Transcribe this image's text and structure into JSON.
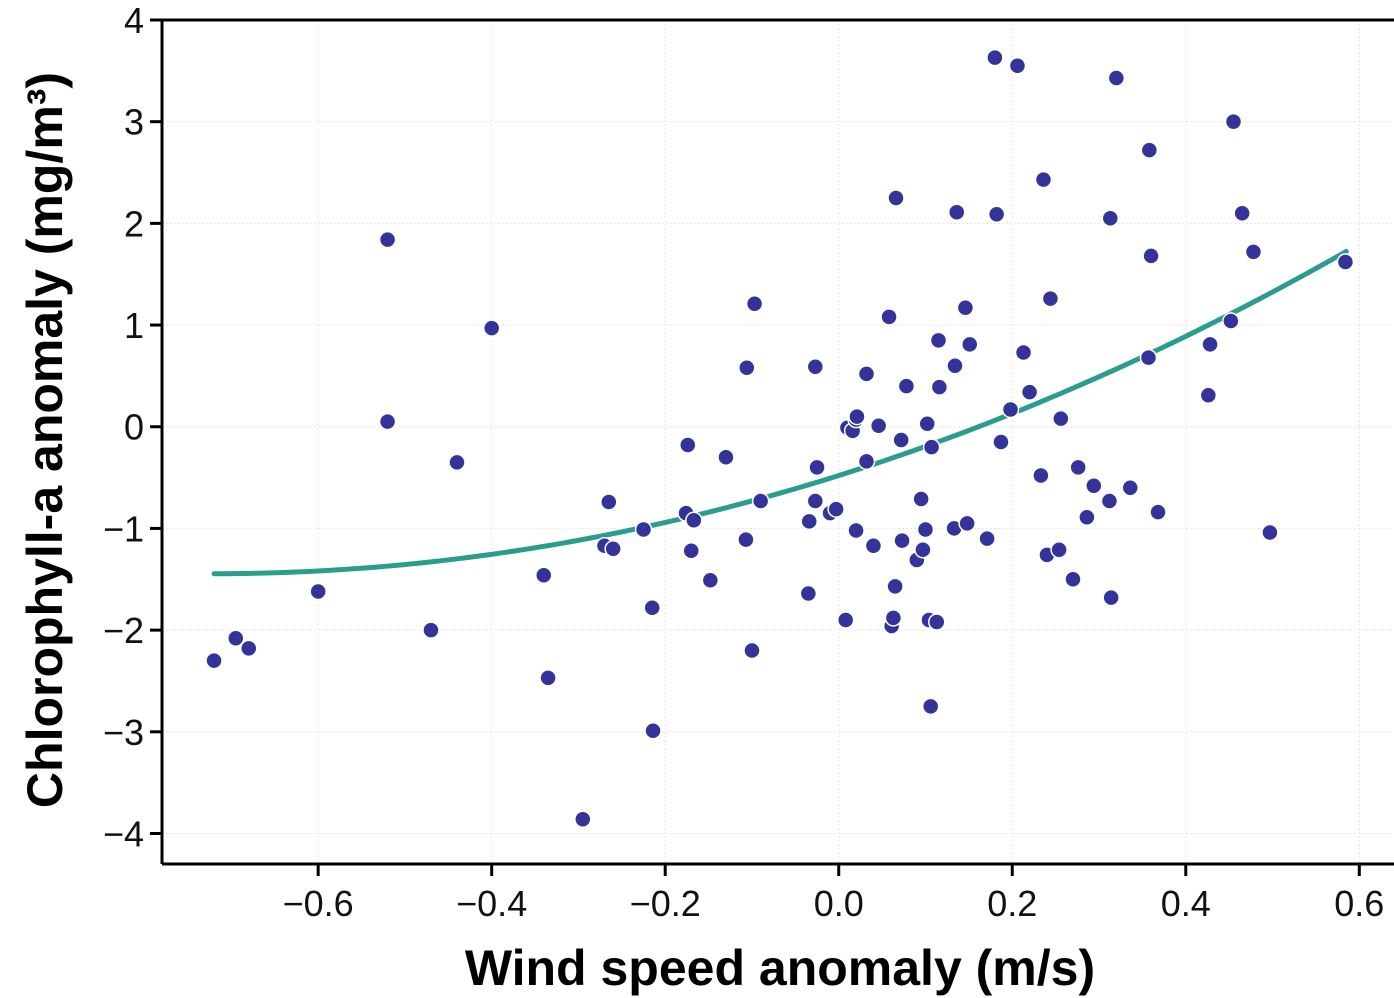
{
  "chart_data": {
    "type": "scatter",
    "xlabel": "Wind speed anomaly (m/s)",
    "ylabel": "Chlorophyll-a anomaly (mg/m³)",
    "xlim": [
      -0.78,
      0.64
    ],
    "ylim": [
      -4.3,
      4
    ],
    "xticks": [
      -0.6,
      -0.4,
      -0.2,
      0.0,
      0.2,
      0.4,
      0.6
    ],
    "xtick_labels": [
      "−0.6",
      "−0.4",
      "−0.2",
      "0.0",
      "0.2",
      "0.4",
      "0.6"
    ],
    "yticks": [
      -4,
      -3,
      -2,
      -1,
      0,
      1,
      2,
      3,
      4
    ],
    "ytick_labels": [
      "−4",
      "−3",
      "−2",
      "−1",
      "0",
      "1",
      "2",
      "3",
      "4"
    ],
    "grid": true,
    "colors": {
      "points": "#33339a",
      "fit": "#2a9d8f",
      "grid": "#e6e6e6",
      "axis": "#000000"
    },
    "points": [
      {
        "x": -0.72,
        "y": -2.3
      },
      {
        "x": -0.695,
        "y": -2.08
      },
      {
        "x": -0.68,
        "y": -2.18
      },
      {
        "x": -0.6,
        "y": -1.62
      },
      {
        "x": -0.52,
        "y": 1.84
      },
      {
        "x": -0.52,
        "y": 0.05
      },
      {
        "x": -0.47,
        "y": -2.0
      },
      {
        "x": -0.44,
        "y": -0.35
      },
      {
        "x": -0.4,
        "y": 0.97
      },
      {
        "x": -0.34,
        "y": -1.46
      },
      {
        "x": -0.335,
        "y": -2.47
      },
      {
        "x": -0.295,
        "y": -3.86
      },
      {
        "x": -0.27,
        "y": -1.17
      },
      {
        "x": -0.265,
        "y": -0.74
      },
      {
        "x": -0.26,
        "y": -1.2
      },
      {
        "x": -0.225,
        "y": -1.01
      },
      {
        "x": -0.215,
        "y": -1.78
      },
      {
        "x": -0.214,
        "y": -2.99
      },
      {
        "x": -0.176,
        "y": -0.85
      },
      {
        "x": -0.174,
        "y": -0.18
      },
      {
        "x": -0.17,
        "y": -1.22
      },
      {
        "x": -0.167,
        "y": -0.92
      },
      {
        "x": -0.148,
        "y": -1.51
      },
      {
        "x": -0.13,
        "y": -0.3
      },
      {
        "x": -0.107,
        "y": -1.11
      },
      {
        "x": -0.106,
        "y": 0.58
      },
      {
        "x": -0.1,
        "y": -2.2
      },
      {
        "x": -0.097,
        "y": 1.21
      },
      {
        "x": -0.09,
        "y": -0.73
      },
      {
        "x": -0.035,
        "y": -1.64
      },
      {
        "x": -0.034,
        "y": -0.93
      },
      {
        "x": -0.027,
        "y": 0.59
      },
      {
        "x": -0.027,
        "y": -0.73
      },
      {
        "x": -0.025,
        "y": -0.4
      },
      {
        "x": -0.01,
        "y": -0.85
      },
      {
        "x": -0.003,
        "y": -0.81
      },
      {
        "x": 0.008,
        "y": -1.9
      },
      {
        "x": 0.01,
        "y": -0.01
      },
      {
        "x": 0.016,
        "y": -0.04
      },
      {
        "x": 0.02,
        "y": 0.07
      },
      {
        "x": 0.021,
        "y": 0.1
      },
      {
        "x": 0.02,
        "y": -1.02
      },
      {
        "x": 0.032,
        "y": -0.34
      },
      {
        "x": 0.032,
        "y": 0.52
      },
      {
        "x": 0.04,
        "y": -1.17
      },
      {
        "x": 0.046,
        "y": 0.01
      },
      {
        "x": 0.058,
        "y": 1.08
      },
      {
        "x": 0.061,
        "y": -1.96
      },
      {
        "x": 0.063,
        "y": -1.88
      },
      {
        "x": 0.065,
        "y": -1.57
      },
      {
        "x": 0.066,
        "y": 2.25
      },
      {
        "x": 0.072,
        "y": -0.13
      },
      {
        "x": 0.073,
        "y": -1.12
      },
      {
        "x": 0.078,
        "y": 0.4
      },
      {
        "x": 0.09,
        "y": -1.31
      },
      {
        "x": 0.095,
        "y": -0.71
      },
      {
        "x": 0.097,
        "y": -1.21
      },
      {
        "x": 0.1,
        "y": -1.01
      },
      {
        "x": 0.102,
        "y": 0.03
      },
      {
        "x": 0.104,
        "y": -1.9
      },
      {
        "x": 0.106,
        "y": -2.75
      },
      {
        "x": 0.107,
        "y": -0.2
      },
      {
        "x": 0.113,
        "y": -1.92
      },
      {
        "x": 0.115,
        "y": 0.85
      },
      {
        "x": 0.116,
        "y": 0.39
      },
      {
        "x": 0.133,
        "y": -1.0
      },
      {
        "x": 0.134,
        "y": 0.6
      },
      {
        "x": 0.136,
        "y": 2.11
      },
      {
        "x": 0.146,
        "y": 1.17
      },
      {
        "x": 0.148,
        "y": -0.95
      },
      {
        "x": 0.151,
        "y": 0.81
      },
      {
        "x": 0.171,
        "y": -1.1
      },
      {
        "x": 0.18,
        "y": 3.63
      },
      {
        "x": 0.182,
        "y": 2.09
      },
      {
        "x": 0.187,
        "y": -0.15
      },
      {
        "x": 0.198,
        "y": 0.17
      },
      {
        "x": 0.206,
        "y": 3.55
      },
      {
        "x": 0.213,
        "y": 0.73
      },
      {
        "x": 0.22,
        "y": 0.34
      },
      {
        "x": 0.233,
        "y": -0.48
      },
      {
        "x": 0.236,
        "y": 2.43
      },
      {
        "x": 0.24,
        "y": -1.26
      },
      {
        "x": 0.244,
        "y": 1.26
      },
      {
        "x": 0.254,
        "y": -1.21
      },
      {
        "x": 0.256,
        "y": 0.08
      },
      {
        "x": 0.27,
        "y": -1.5
      },
      {
        "x": 0.276,
        "y": -0.4
      },
      {
        "x": 0.286,
        "y": -0.89
      },
      {
        "x": 0.294,
        "y": -0.58
      },
      {
        "x": 0.312,
        "y": -0.73
      },
      {
        "x": 0.313,
        "y": 2.05
      },
      {
        "x": 0.314,
        "y": -1.68
      },
      {
        "x": 0.32,
        "y": 3.43
      },
      {
        "x": 0.336,
        "y": -0.6
      },
      {
        "x": 0.357,
        "y": 0.68
      },
      {
        "x": 0.358,
        "y": 2.72
      },
      {
        "x": 0.36,
        "y": 1.68
      },
      {
        "x": 0.368,
        "y": -0.84
      },
      {
        "x": 0.426,
        "y": 0.31
      },
      {
        "x": 0.428,
        "y": 0.81
      },
      {
        "x": 0.452,
        "y": 1.04
      },
      {
        "x": 0.455,
        "y": 3.0
      },
      {
        "x": 0.465,
        "y": 2.1
      },
      {
        "x": 0.478,
        "y": 1.72
      },
      {
        "x": 0.497,
        "y": -1.04
      },
      {
        "x": 0.584,
        "y": 1.62
      }
    ],
    "fit_curve": {
      "type": "quadratic",
      "coefficients": {
        "a": 1.86,
        "b": 2.68,
        "c": -0.48
      },
      "x_range": [
        -0.72,
        0.585
      ]
    }
  }
}
